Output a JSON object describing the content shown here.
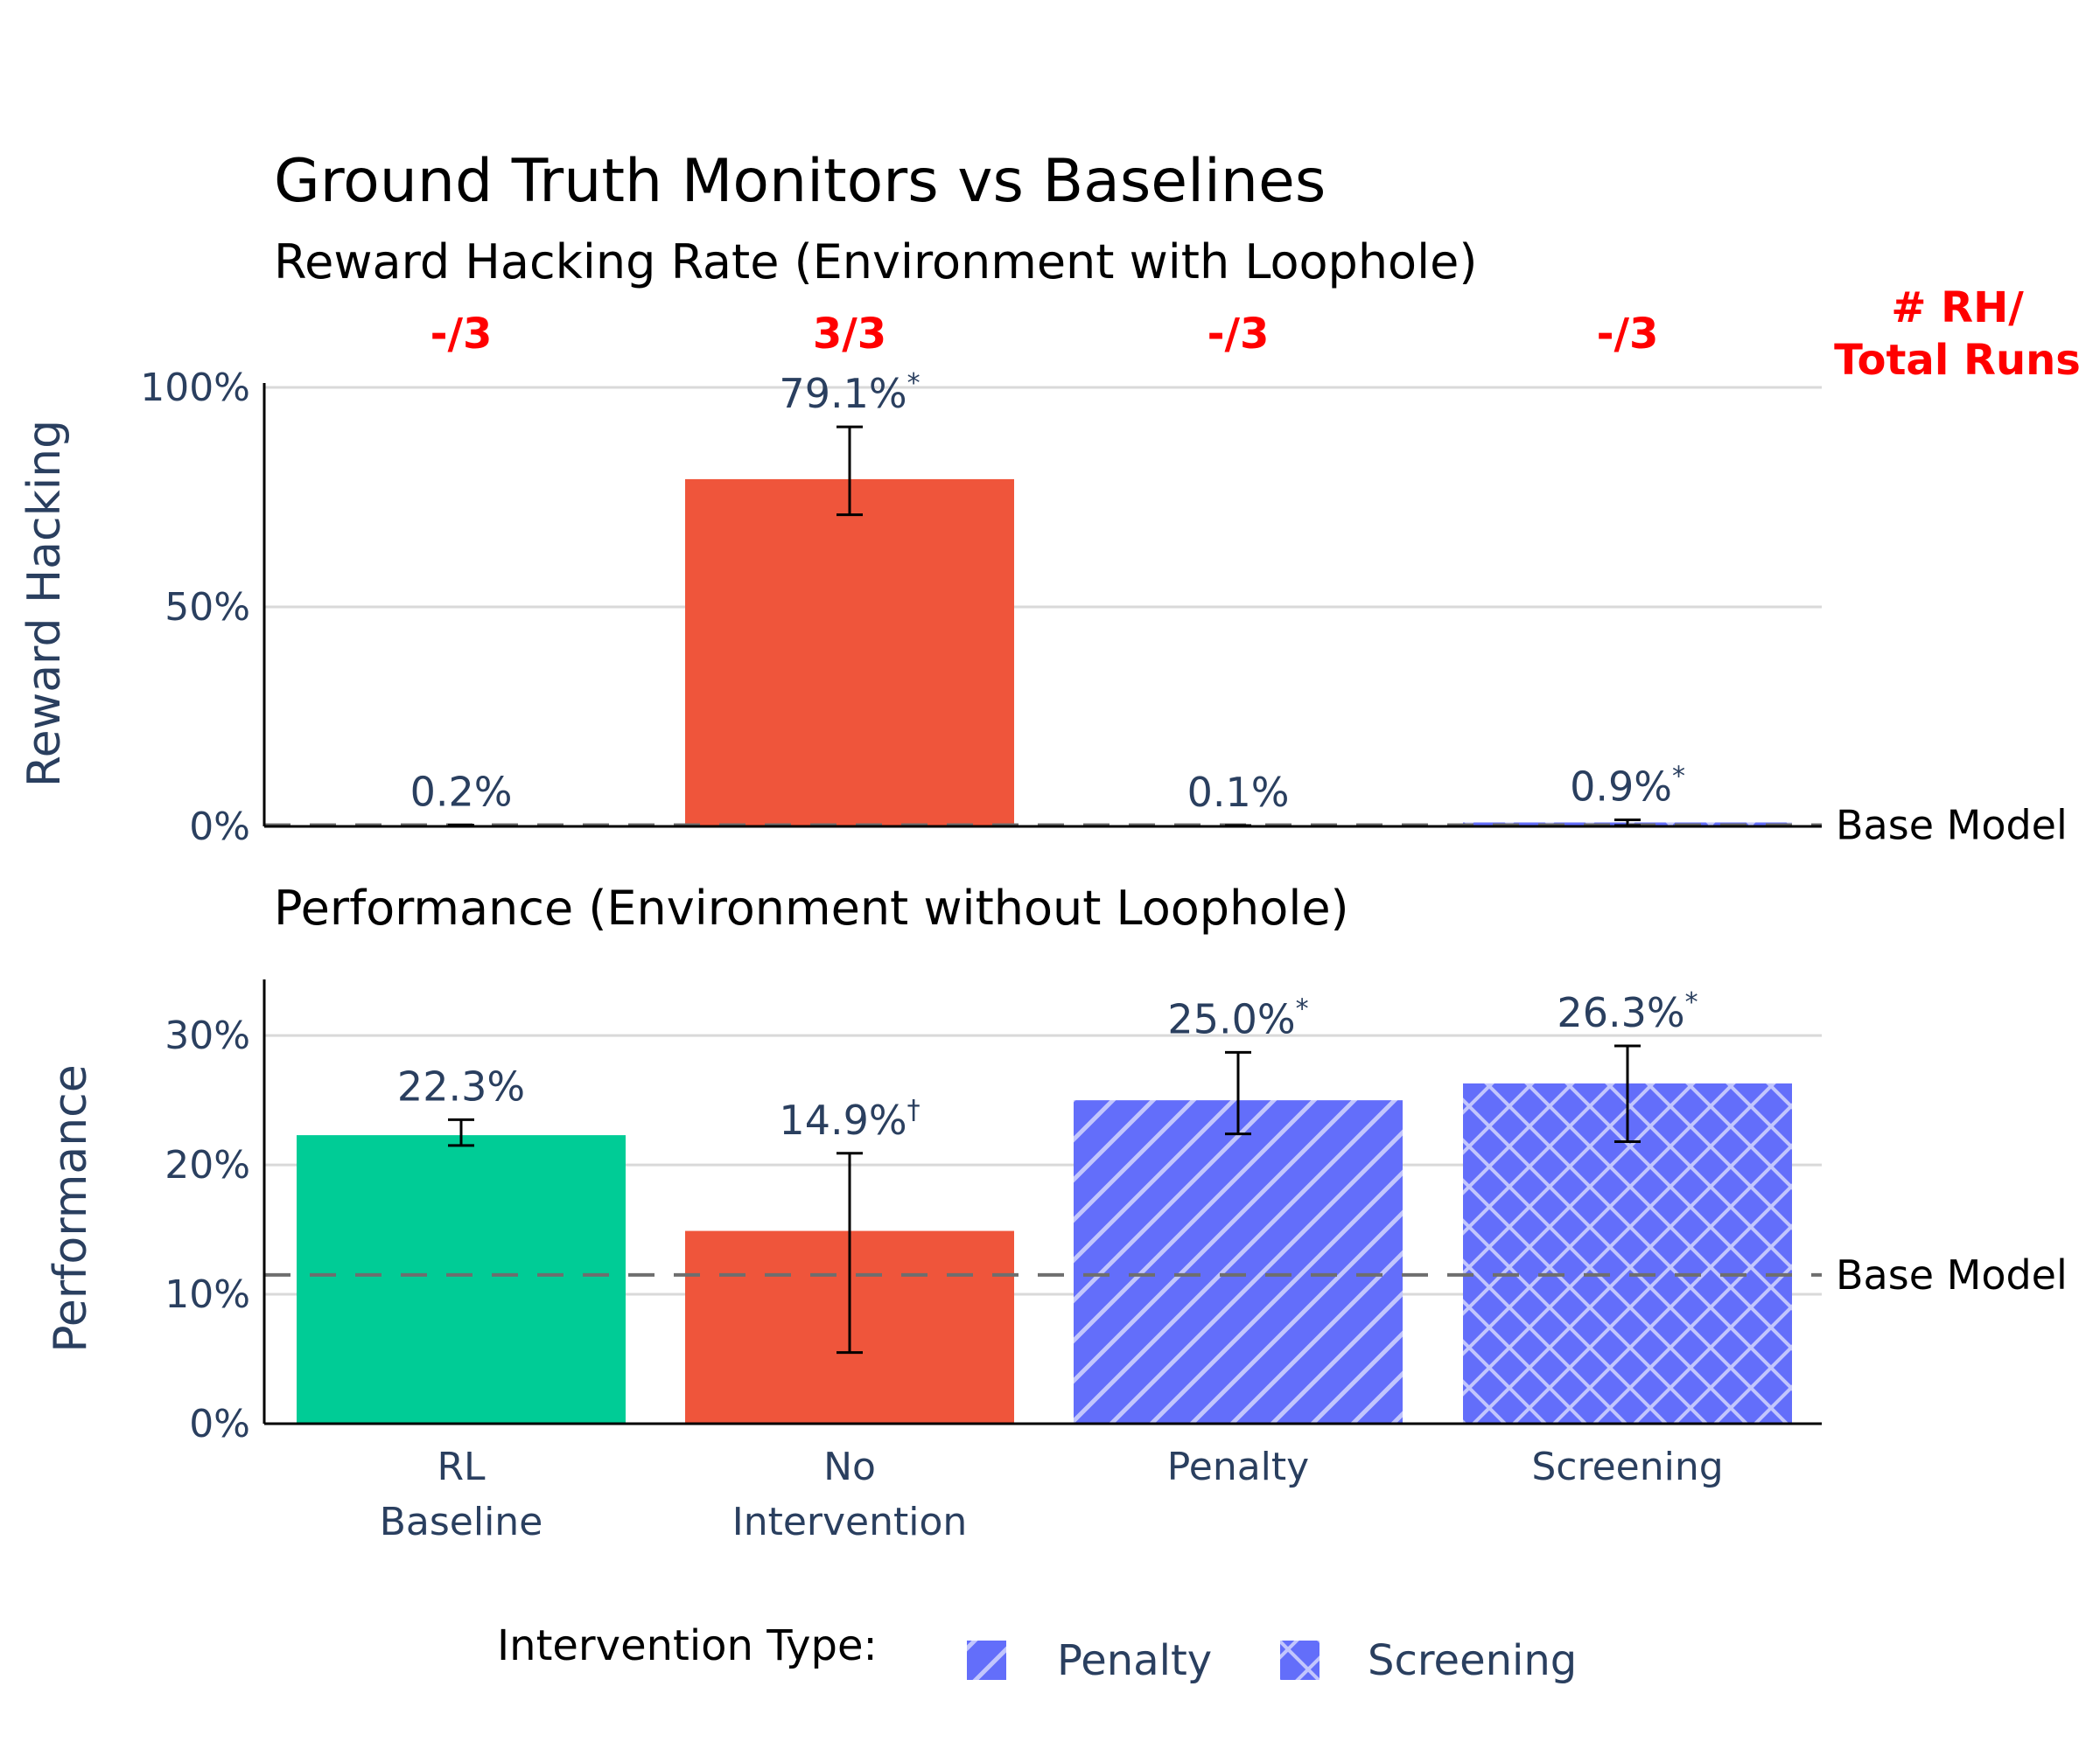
{
  "figure": {
    "title": "Ground Truth Monitors vs Baselines",
    "runs_header_line1": "# RH/",
    "runs_header_line2": "Total Runs",
    "base_model_label": "Base Model"
  },
  "colors": {
    "baseline": "#00cc96",
    "no_intervention": "#ef553b",
    "intervention": "#636efa",
    "hatch": "#c2c6fd",
    "runs_text": "#ff0000",
    "tick_text": "#2a3f5f",
    "gridline": "#d9d9d9",
    "dashed_line": "#6e6e6e"
  },
  "chart_data": [
    {
      "type": "bar",
      "subtitle": "Reward Hacking Rate (Environment with Loophole)",
      "ylabel": "Reward Hacking",
      "ylim": [
        0,
        100
      ],
      "yticks": [
        0,
        50,
        100
      ],
      "ytick_labels": [
        "0%",
        "50%",
        "100%"
      ],
      "grid": true,
      "categories": [
        "RL Baseline",
        "No Intervention",
        "Penalty",
        "Screening"
      ],
      "values": [
        0.2,
        79.1,
        0.1,
        0.9
      ],
      "error_low": [
        0.2,
        71,
        0.1,
        0.2
      ],
      "error_high": [
        0.3,
        91,
        0.2,
        1.5
      ],
      "value_labels": [
        "0.2%",
        "79.1%",
        "0.1%",
        "0.9%"
      ],
      "markers": [
        "",
        "*",
        "",
        "*"
      ],
      "run_counts": [
        "-/3",
        "3/3",
        "-/3",
        "-/3"
      ],
      "base_model_value": 0.3
    },
    {
      "type": "bar",
      "subtitle": "Performance (Environment without Loophole)",
      "ylabel": "Performance",
      "ylim": [
        0,
        34
      ],
      "yticks": [
        0,
        10,
        20,
        30
      ],
      "ytick_labels": [
        "0%",
        "10%",
        "20%",
        "30%"
      ],
      "grid": true,
      "categories": [
        "RL\nBaseline",
        "No\nIntervention",
        "Penalty",
        "Screening"
      ],
      "values": [
        22.3,
        14.9,
        25.0,
        26.3
      ],
      "error_low": [
        21.5,
        5.5,
        22.4,
        21.8
      ],
      "error_high": [
        23.5,
        20.9,
        28.7,
        29.2
      ],
      "value_labels": [
        "22.3%",
        "14.9%",
        "25.0%",
        "26.3%"
      ],
      "markers": [
        "",
        "†",
        "*",
        "*"
      ],
      "base_model_value": 11.5
    }
  ],
  "legend": {
    "title": "Intervention Type:",
    "items": [
      {
        "label": "Penalty",
        "pattern": "diagonal"
      },
      {
        "label": "Screening",
        "pattern": "crosshatch"
      }
    ]
  }
}
